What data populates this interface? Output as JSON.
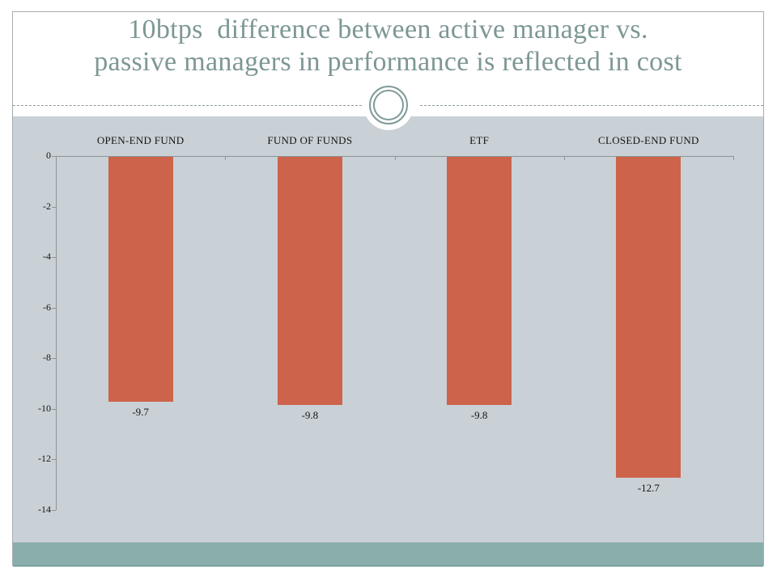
{
  "slide": {
    "title_line1": "10btps  difference between active manager vs.",
    "title_line2": "passive managers in performance is reflected in cost"
  },
  "colors": {
    "title": "#7d9795",
    "bar": "#cd634a",
    "panel_bg": "#c9d1d6",
    "band_bg": "#8aaeac",
    "band_edge": "#79a2a0",
    "frame_border": "#a6adaf",
    "dash": "#8d9b9b",
    "ornament": "#7f9b99",
    "axis": "#8c9499",
    "label_text": "#141414"
  },
  "chart_data": {
    "type": "bar",
    "title": "",
    "xlabel": "",
    "ylabel": "",
    "categories": [
      "OPEN-END FUND",
      "FUND OF FUNDS",
      "ETF",
      "CLOSED-END FUND"
    ],
    "values": [
      -9.7,
      -9.8,
      -9.8,
      -12.7
    ],
    "data_labels": [
      "-9.7",
      "-9.8",
      "-9.8",
      "-12.7"
    ],
    "y_ticks": [
      0,
      -2,
      -4,
      -6,
      -8,
      -10,
      -12,
      -14
    ],
    "y_tick_labels": [
      "0",
      "-2",
      "-4",
      "-6",
      "-8",
      "-10",
      "-12",
      "-14"
    ],
    "ylim": [
      -14,
      0
    ],
    "grid": false,
    "legend": false,
    "category_labels_position": "top",
    "bar_color_name": "bar"
  }
}
